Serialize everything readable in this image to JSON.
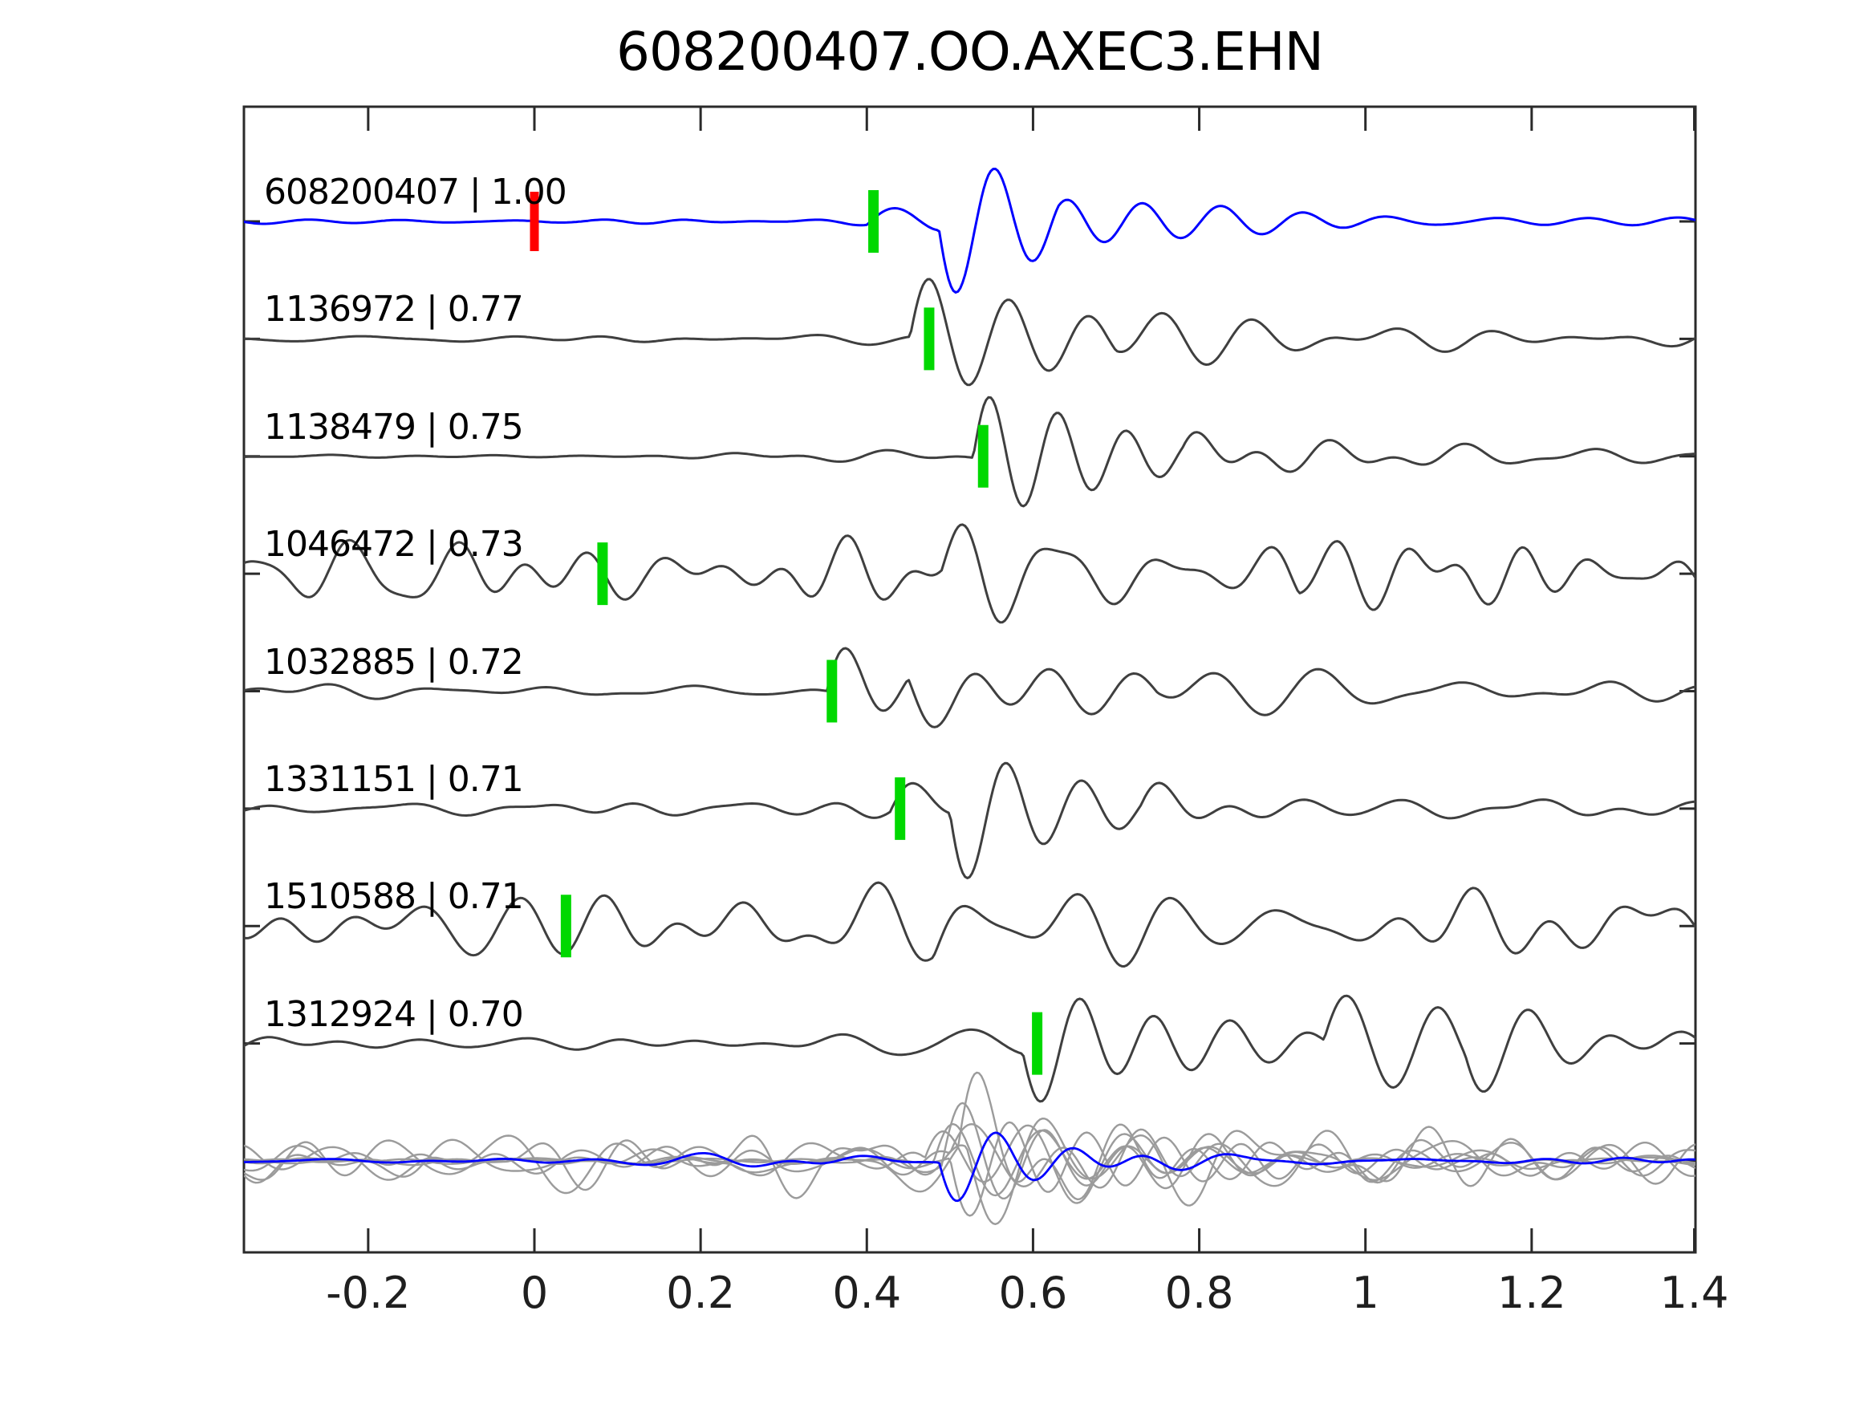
{
  "title": "608200407.OO.AXEC3.EHN",
  "colors": {
    "template_trace": "#0000ff",
    "match_trace": "#3f3f3f",
    "overlay_gray": "#9b9b9b",
    "pick_marker": "#00d800",
    "origin_marker": "#ff0000",
    "axis": "#2a2a2a",
    "text": "#000000",
    "background": "#ffffff"
  },
  "axis": {
    "xmin": -0.35,
    "xmax": 1.4,
    "tick_values": [
      -0.2,
      0,
      0.2,
      0.4,
      0.6,
      0.8,
      1,
      1.2,
      1.4
    ],
    "tick_labels": [
      "-0.2",
      "0",
      "0.2",
      "0.4",
      "0.6",
      "0.8",
      "1",
      "1.2",
      "1.4"
    ],
    "grid": false,
    "legend": null
  },
  "chart_data": {
    "type": "line",
    "title": "608200407.OO.AXEC3.EHN",
    "xlabel": "",
    "ylabel": "",
    "x_range": [
      -0.35,
      1.4
    ],
    "x_tick_labels": [
      "-0.2",
      "0",
      "0.2",
      "0.4",
      "0.6",
      "0.8",
      "1",
      "1.2",
      "1.4"
    ],
    "rows": 9,
    "template_origin_marker_time": 0.0,
    "traces": [
      {
        "id": "608200407",
        "cc": 1.0,
        "label": "608200407 | 1.00",
        "pick_time": 0.408,
        "is_template": true,
        "origin_marker_time": 0.0,
        "synthesis": {
          "seed": 11,
          "noise_amp": 3,
          "noise_fmin": 5,
          "noise_fmax": 13,
          "noise_env": {
            "t0": 0.05,
            "gain": 2.2,
            "tau": 1.0
          },
          "wavelets": [
            {
              "t0": 0.4,
              "T": 0.12,
              "A": 16,
              "tau": 0.12
            },
            {
              "t0": 0.487,
              "T": 0.092,
              "A": -95,
              "tau": 0.16
            },
            {
              "t0": 0.63,
              "T": 0.11,
              "A": -18,
              "tau": 0.35
            }
          ]
        }
      },
      {
        "id": "1136972",
        "cc": 0.77,
        "label": "1136972 | 0.77",
        "pick_time": 0.475,
        "is_template": false,
        "synthesis": {
          "seed": 22,
          "noise_amp": 3.5,
          "noise_fmin": 4,
          "noise_fmax": 12,
          "noise_env": {
            "t0": 0.0,
            "gain": 1.4,
            "tau": 1.5
          },
          "wavelets": [
            {
              "t0": 0.452,
              "T": 0.096,
              "A": 80,
              "tau": 0.22
            },
            {
              "t0": 0.7,
              "T": 0.14,
              "A": 20,
              "tau": 0.4
            }
          ]
        }
      },
      {
        "id": "1138479",
        "cc": 0.75,
        "label": "1138479 | 0.75",
        "pick_time": 0.54,
        "is_template": false,
        "synthesis": {
          "seed": 33,
          "noise_amp": 3.5,
          "noise_fmin": 4,
          "noise_fmax": 12,
          "noise_env": {
            "t0": 0.1,
            "gain": 1.6,
            "tau": 1.0
          },
          "wavelets": [
            {
              "t0": 0.528,
              "T": 0.082,
              "A": 86,
              "tau": 0.2
            },
            {
              "t0": 0.78,
              "T": 0.15,
              "A": 16,
              "tau": 0.5
            }
          ]
        }
      },
      {
        "id": "1046472",
        "cc": 0.73,
        "label": "1046472 | 0.73",
        "pick_time": 0.082,
        "is_template": false,
        "synthesis": {
          "seed": 44,
          "noise_amp": 46,
          "noise_fmin": 4.5,
          "noise_fmax": 15,
          "noise_env": null,
          "wavelets": [
            {
              "t0": 0.49,
              "T": 0.11,
              "A": 40,
              "tau": 0.2
            },
            {
              "t0": 0.92,
              "T": 0.12,
              "A": 42,
              "tau": 0.18
            }
          ]
        }
      },
      {
        "id": "1032885",
        "cc": 0.72,
        "label": "1032885 | 0.72",
        "pick_time": 0.358,
        "is_template": false,
        "synthesis": {
          "seed": 55,
          "noise_amp": 13,
          "noise_fmin": 4,
          "noise_fmax": 13,
          "noise_env": {
            "t0": 0.35,
            "gain": 1.2,
            "tau": 0.6
          },
          "wavelets": [
            {
              "t0": 0.352,
              "T": 0.1,
              "A": 72,
              "tau": 0.12
            },
            {
              "t0": 0.45,
              "T": 0.1,
              "A": -65,
              "tau": 0.25
            },
            {
              "t0": 0.75,
              "T": 0.16,
              "A": 15,
              "tau": 0.4
            }
          ]
        }
      },
      {
        "id": "1331151",
        "cc": 0.71,
        "label": "1331151 | 0.71",
        "pick_time": 0.44,
        "is_template": false,
        "synthesis": {
          "seed": 66,
          "noise_amp": 8.5,
          "noise_fmin": 4,
          "noise_fmax": 13,
          "noise_env": {
            "t0": 0.35,
            "gain": 1.3,
            "tau": 0.8
          },
          "wavelets": [
            {
              "t0": 0.428,
              "T": 0.12,
              "A": 30,
              "tau": 0.12
            },
            {
              "t0": 0.5,
              "T": 0.092,
              "A": -94,
              "tau": 0.18
            },
            {
              "t0": 0.73,
              "T": 0.14,
              "A": 18,
              "tau": 0.4
            }
          ]
        }
      },
      {
        "id": "1510588",
        "cc": 0.71,
        "label": "1510588 | 0.71",
        "pick_time": 0.038,
        "is_template": false,
        "synthesis": {
          "seed": 77,
          "noise_amp": 54,
          "noise_fmin": 4,
          "noise_fmax": 13,
          "noise_env": null,
          "wavelets": [
            {
              "t0": 0.48,
              "T": 0.12,
              "A": 30,
              "tau": 0.3
            }
          ]
        }
      },
      {
        "id": "1312924",
        "cc": 0.7,
        "label": "1312924 | 0.70",
        "pick_time": 0.605,
        "is_template": false,
        "synthesis": {
          "seed": 88,
          "noise_amp": 10,
          "noise_fmin": 4,
          "noise_fmax": 12,
          "noise_env": {
            "t0": 0.3,
            "gain": 0.9,
            "tau": 1.0
          },
          "wavelets": [
            {
              "t0": 0.588,
              "T": 0.09,
              "A": -64,
              "tau": 0.3
            },
            {
              "t0": 0.95,
              "T": 0.105,
              "A": 68,
              "tau": 0.3
            },
            {
              "t0": 1.12,
              "T": 0.13,
              "A": -30,
              "tau": 0.35
            }
          ]
        }
      }
    ],
    "overlay_row": {
      "description": "all matched waveforms overlaid in gray with the template in blue",
      "gray_members": [
        {
          "seed": 101,
          "noise_amp": 5,
          "noise_fmin": 3,
          "noise_fmax": 12,
          "noise_env": {
            "t0": 0.38,
            "gain": 5.0,
            "tau": 0.35
          },
          "wavelets": [
            {
              "t0": 0.49,
              "T": 0.1,
              "A": 70,
              "tau": 0.2
            }
          ]
        },
        {
          "seed": 102,
          "noise_amp": 6,
          "noise_fmin": 3,
          "noise_fmax": 12,
          "noise_env": {
            "t0": 0.4,
            "gain": 4.0,
            "tau": 0.4
          },
          "wavelets": [
            {
              "t0": 0.5,
              "T": 0.095,
              "A": -78,
              "tau": 0.22
            }
          ]
        },
        {
          "seed": 103,
          "noise_amp": 7,
          "noise_fmin": 3,
          "noise_fmax": 12,
          "noise_env": {
            "t0": 0.36,
            "gain": 4.5,
            "tau": 0.5
          },
          "wavelets": [
            {
              "t0": 0.47,
              "T": 0.105,
              "A": 62,
              "tau": 0.25
            }
          ]
        },
        {
          "seed": 104,
          "noise_amp": 32,
          "noise_fmin": 3,
          "noise_fmax": 13,
          "noise_env": null,
          "wavelets": [
            {
              "t0": 0.5,
              "T": 0.11,
              "A": 55,
              "tau": 0.25
            }
          ]
        },
        {
          "seed": 105,
          "noise_amp": 46,
          "noise_fmin": 3,
          "noise_fmax": 13,
          "noise_env": null,
          "wavelets": [
            {
              "t0": 0.52,
              "T": 0.12,
              "A": -60,
              "tau": 0.2
            }
          ]
        },
        {
          "seed": 106,
          "noise_amp": 40,
          "noise_fmin": 3,
          "noise_fmax": 13,
          "noise_env": null,
          "wavelets": [
            {
              "t0": 0.48,
              "T": 0.1,
              "A": 50,
              "tau": 0.3
            }
          ]
        },
        {
          "seed": 107,
          "noise_amp": 26,
          "noise_fmin": 3,
          "noise_fmax": 12,
          "noise_env": {
            "t0": 0.4,
            "gain": 2.0,
            "tau": 0.6
          },
          "wavelets": [
            {
              "t0": 0.51,
              "T": 0.09,
              "A": 80,
              "tau": 0.18
            }
          ]
        }
      ],
      "template_member": {
        "seed": 120,
        "noise_amp": 3.5,
        "noise_fmin": 4,
        "noise_fmax": 12,
        "noise_env": {
          "t0": 0.05,
          "gain": 2.0,
          "tau": 1.2
        },
        "wavelets": [
          {
            "t0": 0.487,
            "T": 0.092,
            "A": -55,
            "tau": 0.13
          }
        ]
      }
    }
  }
}
